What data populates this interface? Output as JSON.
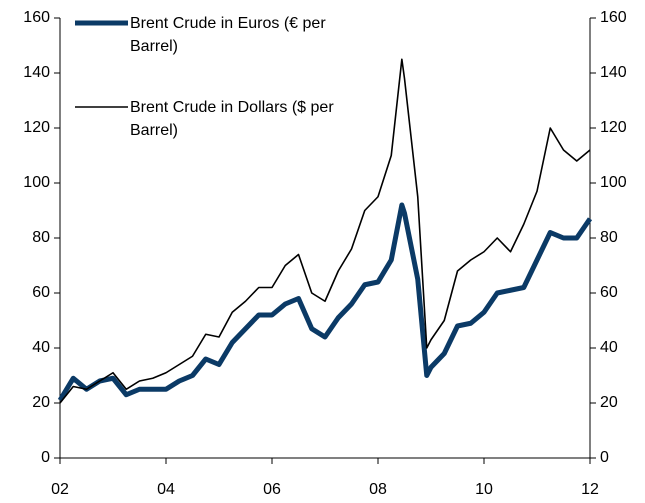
{
  "chart_data": {
    "type": "line",
    "x": [
      2,
      2.25,
      2.5,
      2.75,
      3,
      3.25,
      3.5,
      3.75,
      4,
      4.25,
      4.5,
      4.75,
      5,
      5.25,
      5.5,
      5.75,
      6,
      6.25,
      6.5,
      6.75,
      7,
      7.25,
      7.5,
      7.75,
      8,
      8.25,
      8.45,
      8.5,
      8.75,
      8.92,
      9,
      9.25,
      9.5,
      9.75,
      10,
      10.25,
      10.5,
      10.75,
      11,
      11.25,
      11.5,
      11.75,
      12
    ],
    "series": [
      {
        "name": "Brent Crude in Euros (€ per Barrel)",
        "color": "#0b3a66",
        "values": [
          21,
          29,
          25,
          28,
          29,
          23,
          25,
          25,
          25,
          28,
          30,
          36,
          34,
          42,
          47,
          52,
          52,
          56,
          58,
          47,
          44,
          51,
          56,
          63,
          64,
          72,
          92,
          89,
          65,
          30,
          33,
          38,
          48,
          49,
          53,
          60,
          61,
          62,
          72,
          82,
          80,
          80,
          87
        ]
      },
      {
        "name": "Brent Crude in Dollars ($ per Barrel)",
        "color": "#000000",
        "axis": "y2",
        "values": [
          20,
          26,
          25,
          28,
          31,
          25,
          28,
          29,
          31,
          34,
          37,
          45,
          44,
          53,
          57,
          62,
          62,
          70,
          74,
          60,
          57,
          68,
          76,
          90,
          95,
          110,
          145,
          138,
          95,
          40,
          43,
          50,
          68,
          72,
          75,
          80,
          75,
          85,
          97,
          120,
          112,
          108,
          112
        ]
      }
    ],
    "xlim": [
      2,
      12
    ],
    "xticks": [
      {
        "value": 2,
        "label": "02"
      },
      {
        "value": 4,
        "label": "04"
      },
      {
        "value": 6,
        "label": "06"
      },
      {
        "value": 8,
        "label": "08"
      },
      {
        "value": 10,
        "label": "10"
      },
      {
        "value": 12,
        "label": "12"
      }
    ],
    "ylim": [
      0,
      160
    ],
    "yticks": [
      0,
      20,
      40,
      60,
      80,
      100,
      120,
      140,
      160
    ],
    "y2lim": [
      0,
      160
    ],
    "y2ticks": [
      0,
      20,
      40,
      60,
      80,
      100,
      120,
      140,
      160
    ],
    "grid": false
  }
}
